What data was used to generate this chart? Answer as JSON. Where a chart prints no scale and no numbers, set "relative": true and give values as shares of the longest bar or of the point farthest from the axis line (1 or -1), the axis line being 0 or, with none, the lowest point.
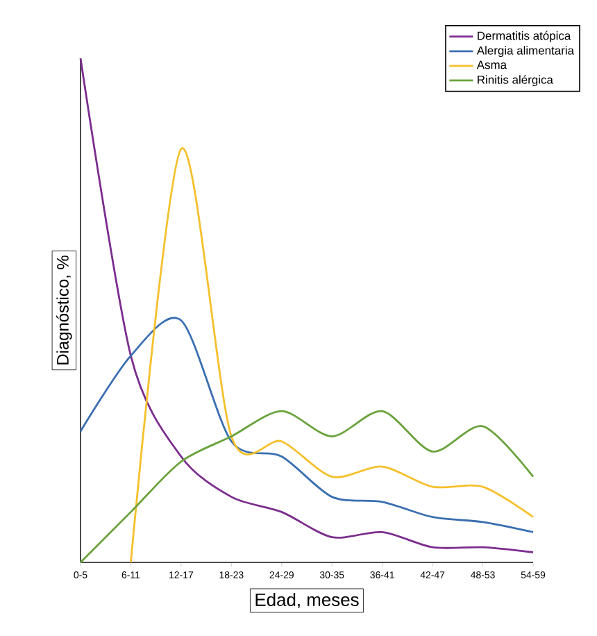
{
  "chart_data": {
    "type": "line",
    "xlabel": "Edad, meses",
    "ylabel": "Diagnóstico, %",
    "relative": true,
    "legend": "top right",
    "categories": [
      "0-5",
      "6-11",
      "12-17",
      "18-23",
      "24-29",
      "30-35",
      "36-41",
      "42-47",
      "48-53",
      "54-59"
    ],
    "series": [
      {
        "name": "Dermatitis atópica",
        "color": "#7b2d8e",
        "values": [
          1.0,
          0.41,
          0.21,
          0.13,
          0.1,
          0.05,
          0.06,
          0.03,
          0.03,
          0.02
        ]
      },
      {
        "name": "Alergia alimentaria",
        "color": "#3a6fb0",
        "values": [
          0.26,
          0.41,
          0.48,
          0.24,
          0.21,
          0.13,
          0.12,
          0.09,
          0.08,
          0.06
        ]
      },
      {
        "name": "Asma",
        "color": "#f5c02c",
        "values": [
          null,
          0.0,
          0.82,
          0.25,
          0.24,
          0.17,
          0.19,
          0.15,
          0.15,
          0.09
        ]
      },
      {
        "name": "Rinitis alérgica",
        "color": "#6aa23c",
        "values": [
          0.0,
          0.1,
          0.2,
          0.25,
          0.3,
          0.25,
          0.3,
          0.22,
          0.27,
          0.17
        ]
      }
    ]
  }
}
